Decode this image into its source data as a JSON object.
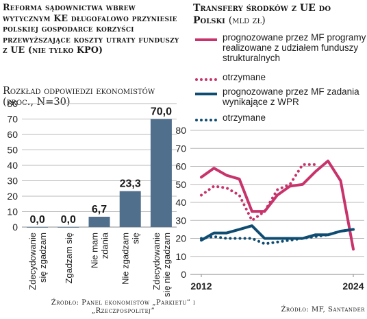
{
  "left": {
    "title": "Reforma sądownictwa wbrew wytycznym KE długofalowo przyniesie polskiej gospodarce korzyści przewyższające koszty utraty funduszy z UE (nie tylko KPO)",
    "subtitle": "Rozkład odpowiedzi ekonomistów (proc., N=30)",
    "source": "Źródło: Panel ekonomistów „Parkietu” i „Rzeczpospolitej”"
  },
  "right": {
    "title": "Transfery środków z UE do Polski",
    "title_unit": "(mld zł)",
    "source": "Źródło: MF, Santander",
    "colors": {
      "magenta": "#c8336b",
      "navy": "#0f4c72"
    },
    "legend": [
      {
        "label": "prognozowane przez MF programy realizowane z udziałem funduszy strukturalnych",
        "color": "#c8336b",
        "style": "solid"
      },
      {
        "label": "otrzymane",
        "color": "#c8336b",
        "style": "dotted"
      },
      {
        "label": "prognozowane przez MF zadania wynikające z WPR",
        "color": "#0f4c72",
        "style": "solid"
      },
      {
        "label": "otrzymane",
        "color": "#0f4c72",
        "style": "dotted"
      }
    ]
  },
  "chart_data": [
    {
      "type": "bar",
      "categories": [
        "Zdecydowanie się zgadzam",
        "Zgadzam się",
        "Nie mam zdania",
        "Nie zgadzam się",
        "Zdecydowanie się nie zgadzam"
      ],
      "values": [
        0.0,
        0.0,
        6.7,
        23.3,
        70.0
      ],
      "value_labels": [
        "0,0",
        "0,0",
        "6,7",
        "23,3",
        "70,0"
      ],
      "yticks": [
        0,
        10,
        20,
        30,
        40,
        50,
        60,
        70,
        80
      ],
      "ylim": [
        0,
        80
      ],
      "bar_color": "#4f6f8d",
      "grid": true
    },
    {
      "type": "line",
      "x_ticks": [
        "2012",
        "2024"
      ],
      "xlim": [
        2012,
        2024
      ],
      "yticks": [
        0,
        10,
        20,
        30,
        40,
        50,
        60,
        70,
        80
      ],
      "ylim": [
        0,
        80
      ],
      "grid": true,
      "series": [
        {
          "name": "prognozowane przez MF programy realizowane z udziałem funduszy strukturalnych",
          "color": "#c8336b",
          "dash": "solid",
          "x": [
            2012,
            2013,
            2014,
            2015,
            2016,
            2017,
            2018,
            2019,
            2020,
            2021,
            2022,
            2023,
            2024
          ],
          "y": [
            54,
            59,
            55,
            53,
            35,
            35,
            44,
            49,
            50,
            57,
            63,
            52,
            14
          ]
        },
        {
          "name": "otrzymane",
          "color": "#c8336b",
          "dash": "dotted",
          "x": [
            2012,
            2013,
            2014,
            2015,
            2016,
            2017,
            2018,
            2019,
            2020,
            2021
          ],
          "y": [
            44,
            49,
            48,
            44,
            30,
            35,
            47,
            50,
            61,
            61
          ]
        },
        {
          "name": "prognozowane przez MF zadania wynikające z WPR",
          "color": "#0f4c72",
          "dash": "solid",
          "x": [
            2012,
            2013,
            2014,
            2015,
            2016,
            2017,
            2018,
            2019,
            2020,
            2021,
            2022,
            2023,
            2024
          ],
          "y": [
            19,
            23,
            23,
            25,
            27,
            20,
            20,
            20,
            20,
            22,
            22,
            24,
            25
          ]
        },
        {
          "name": "otrzymane",
          "color": "#0f4c72",
          "dash": "dotted",
          "x": [
            2012,
            2013,
            2014,
            2015,
            2016,
            2017,
            2018,
            2019,
            2020,
            2021,
            2022,
            2023,
            2024
          ],
          "y": [
            20,
            21,
            20,
            20,
            20,
            17,
            18,
            19,
            20,
            21,
            22,
            24,
            25
          ]
        }
      ]
    }
  ]
}
